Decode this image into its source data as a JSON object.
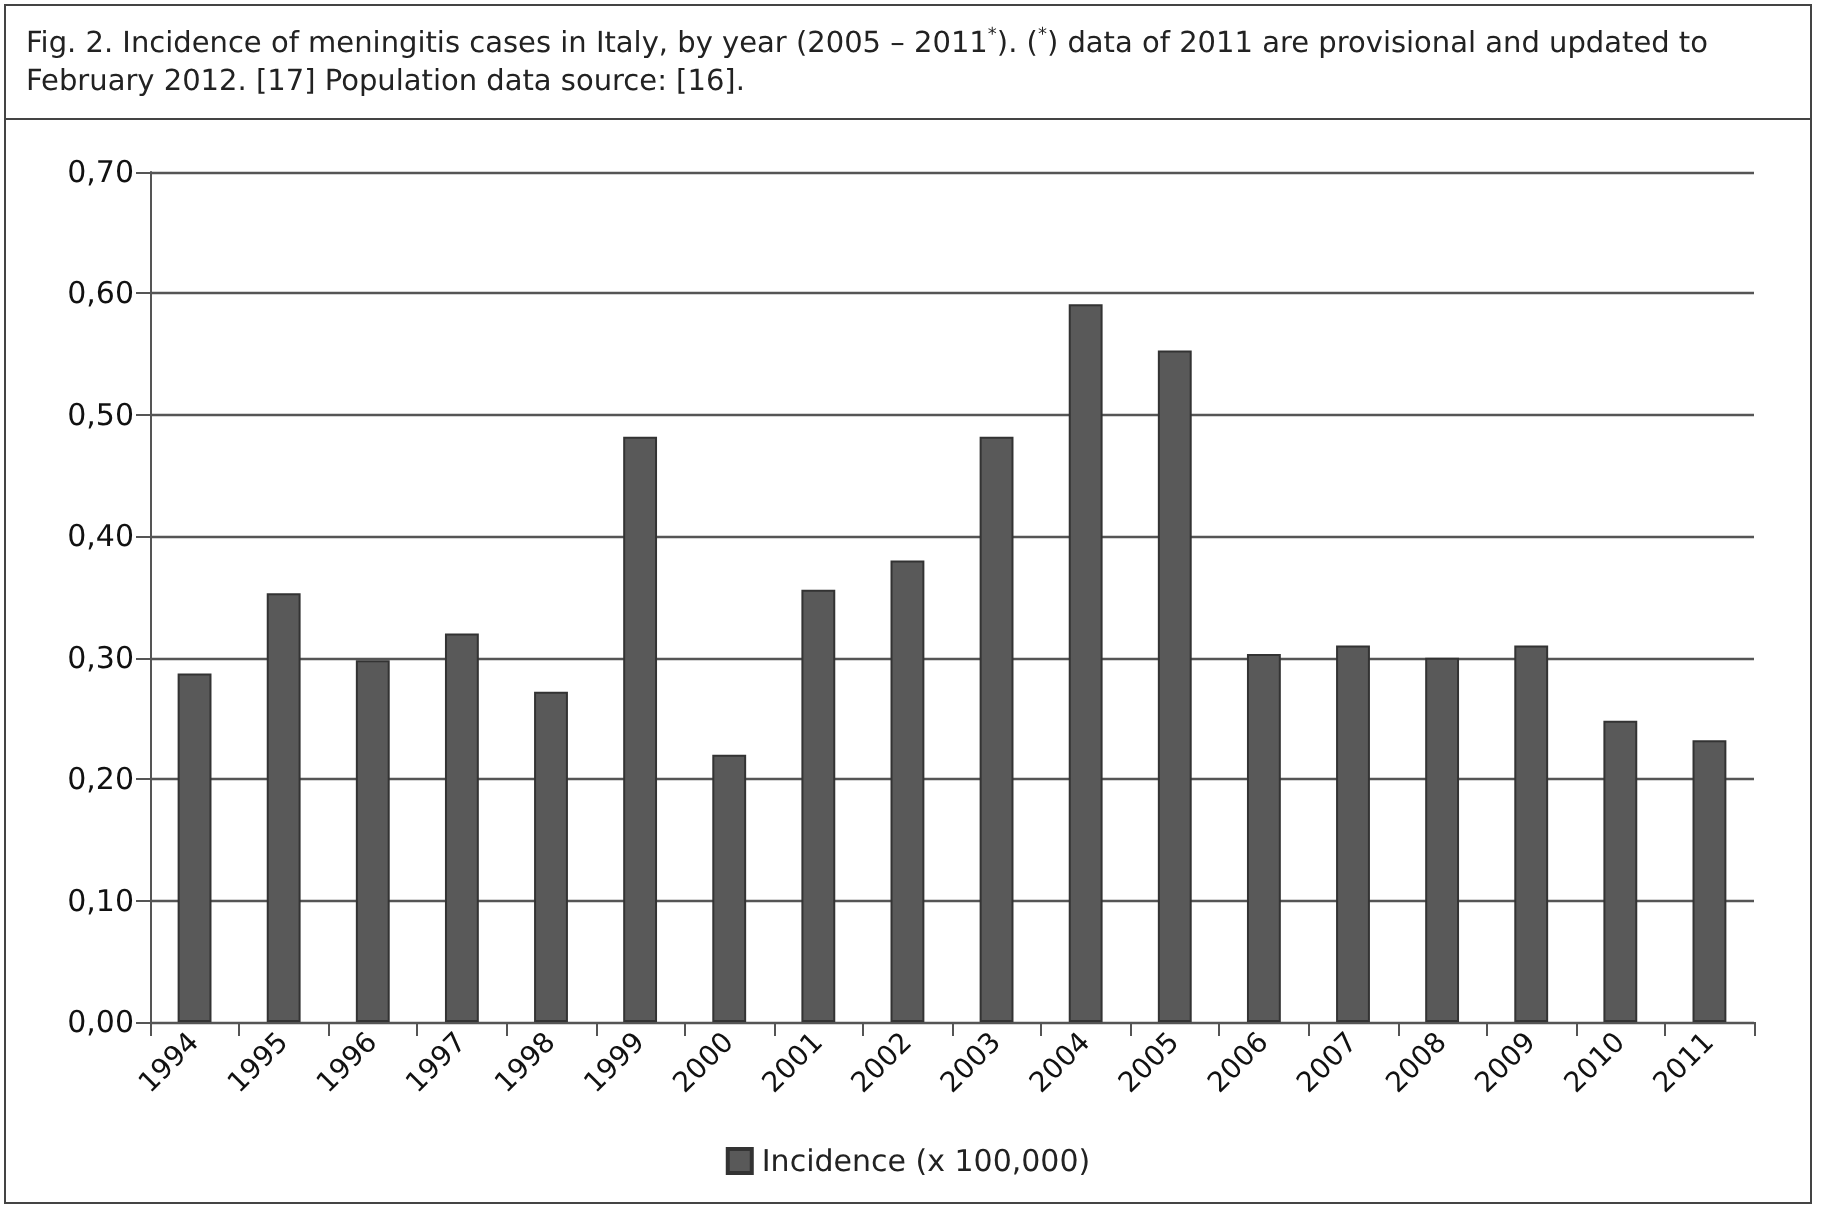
{
  "chart_data": {
    "type": "bar",
    "title": "Fig. 2. Incidence of meningitis cases in Italy, by year (2005 – 2011$^{*}$). ($^{*}$) data of 2011 are provisional and updated to February 2012. [17] Population data source: [16].",
    "categories": [
      "1994",
      "1995",
      "1996",
      "1997",
      "1998",
      "1999",
      "2000",
      "2001",
      "2002",
      "2003",
      "2004",
      "2005",
      "2006",
      "2007",
      "2008",
      "2009",
      "2010",
      "2011"
    ],
    "series": [
      {
        "name": "Incidence (x 100,000)",
        "color": "#595959",
        "values": [
          0.287,
          0.353,
          0.298,
          0.32,
          0.272,
          0.482,
          0.22,
          0.356,
          0.38,
          0.482,
          0.591,
          0.553,
          0.303,
          0.31,
          0.3,
          0.31,
          0.248,
          0.232
        ]
      }
    ],
    "ylim": [
      0,
      0.7
    ],
    "yticks": [
      {
        "value": 0,
        "label": "0,00"
      },
      {
        "value": 0.1,
        "label": "0,10"
      },
      {
        "value": 0.2,
        "label": "0,20"
      },
      {
        "value": 0.3,
        "label": "0,30"
      },
      {
        "value": 0.4,
        "label": "0,40"
      },
      {
        "value": 0.5,
        "label": "0,50"
      },
      {
        "value": 0.6,
        "label": "0,60"
      },
      {
        "value": 0.7,
        "label": "0,70"
      }
    ],
    "grid": "y",
    "legend": "bottom"
  }
}
